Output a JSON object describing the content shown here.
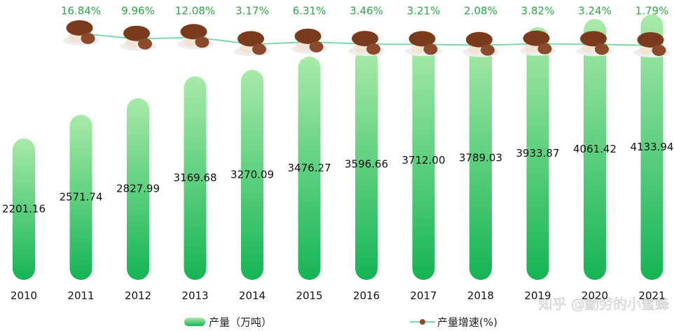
{
  "chart_data": {
    "type": "bar-line",
    "categories": [
      "2010",
      "2011",
      "2012",
      "2013",
      "2014",
      "2015",
      "2016",
      "2017",
      "2018",
      "2019",
      "2020",
      "2021"
    ],
    "series": [
      {
        "name": "产量（万吨）",
        "type": "bar",
        "color": "#2fbf62",
        "values": [
          2201.16,
          2571.74,
          2827.99,
          3169.68,
          3270.09,
          3476.27,
          3596.66,
          3712.0,
          3789.03,
          3933.87,
          4061.42,
          4133.94
        ],
        "value_labels": [
          "2201.16",
          "2571.74",
          "2827.99",
          "3169.68",
          "3270.09",
          "3476.27",
          "3596.66",
          "3712.00",
          "3789.03",
          "3933.87",
          "4061.42",
          "4133.94"
        ]
      },
      {
        "name": "产量增速(%)",
        "type": "line",
        "axis": "y2",
        "color": "#7fd8a8",
        "values": [
          null,
          16.84,
          9.96,
          12.08,
          3.17,
          6.31,
          3.46,
          3.21,
          2.08,
          3.82,
          3.24,
          1.79
        ],
        "value_labels": [
          null,
          "16.84%",
          "9.96%",
          "12.08%",
          "3.17%",
          "6.31%",
          "3.46%",
          "3.21%",
          "2.08%",
          "3.82%",
          "3.24%",
          "1.79%"
        ]
      }
    ],
    "ylim": [
      0,
      4140
    ],
    "y2lim": [
      0,
      30
    ],
    "watermark": "知乎 @勤劳的小蜜蜂"
  }
}
